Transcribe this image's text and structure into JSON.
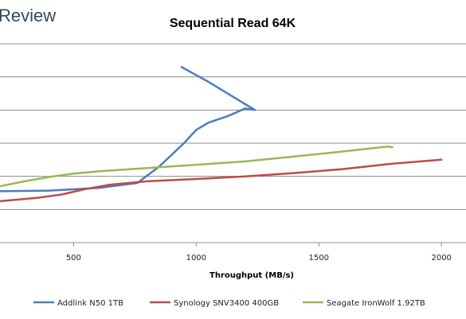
{
  "brand": "Review",
  "chart_data": {
    "type": "line",
    "title": "Sequential Read 64K",
    "xlabel": "Throughput (MB/s)",
    "ylabel": "",
    "xlim": [
      200,
      2100
    ],
    "ylim": [
      0,
      6
    ],
    "x_ticks": [
      500,
      1000,
      1500,
      2000
    ],
    "y_gridlines": [
      1,
      2,
      3,
      4,
      5,
      6
    ],
    "grid": "horizontal",
    "legend_position": "bottom",
    "colors": {
      "Addlink N50 1TB": "#4a7ebb",
      "Synology SNV3400 400GB": "#be4b48",
      "Seagate IronWolf 1.92TB": "#98b954"
    },
    "series": [
      {
        "name": "Addlink N50 1TB",
        "color": "#4a7ebb",
        "points": [
          [
            200,
            1.55
          ],
          [
            400,
            1.57
          ],
          [
            600,
            1.65
          ],
          [
            760,
            1.8
          ],
          [
            850,
            2.3
          ],
          [
            950,
            3.0
          ],
          [
            1000,
            3.4
          ],
          [
            1050,
            3.62
          ],
          [
            1130,
            3.82
          ],
          [
            1200,
            4.05
          ],
          [
            1240,
            4.0
          ],
          [
            1195,
            4.2
          ],
          [
            1050,
            4.85
          ],
          [
            940,
            5.3
          ]
        ]
      },
      {
        "name": "Synology SNV3400 400GB",
        "color": "#be4b48",
        "points": [
          [
            200,
            1.25
          ],
          [
            350,
            1.35
          ],
          [
            450,
            1.45
          ],
          [
            550,
            1.62
          ],
          [
            650,
            1.75
          ],
          [
            800,
            1.85
          ],
          [
            1000,
            1.92
          ],
          [
            1200,
            2.0
          ],
          [
            1400,
            2.1
          ],
          [
            1600,
            2.22
          ],
          [
            1800,
            2.38
          ],
          [
            2000,
            2.5
          ]
        ]
      },
      {
        "name": "Seagate IronWolf 1.92TB",
        "color": "#98b954",
        "points": [
          [
            200,
            1.7
          ],
          [
            300,
            1.85
          ],
          [
            400,
            1.98
          ],
          [
            500,
            2.08
          ],
          [
            600,
            2.15
          ],
          [
            800,
            2.25
          ],
          [
            1000,
            2.35
          ],
          [
            1200,
            2.45
          ],
          [
            1400,
            2.6
          ],
          [
            1600,
            2.75
          ],
          [
            1780,
            2.9
          ],
          [
            1800,
            2.88
          ]
        ]
      }
    ]
  }
}
